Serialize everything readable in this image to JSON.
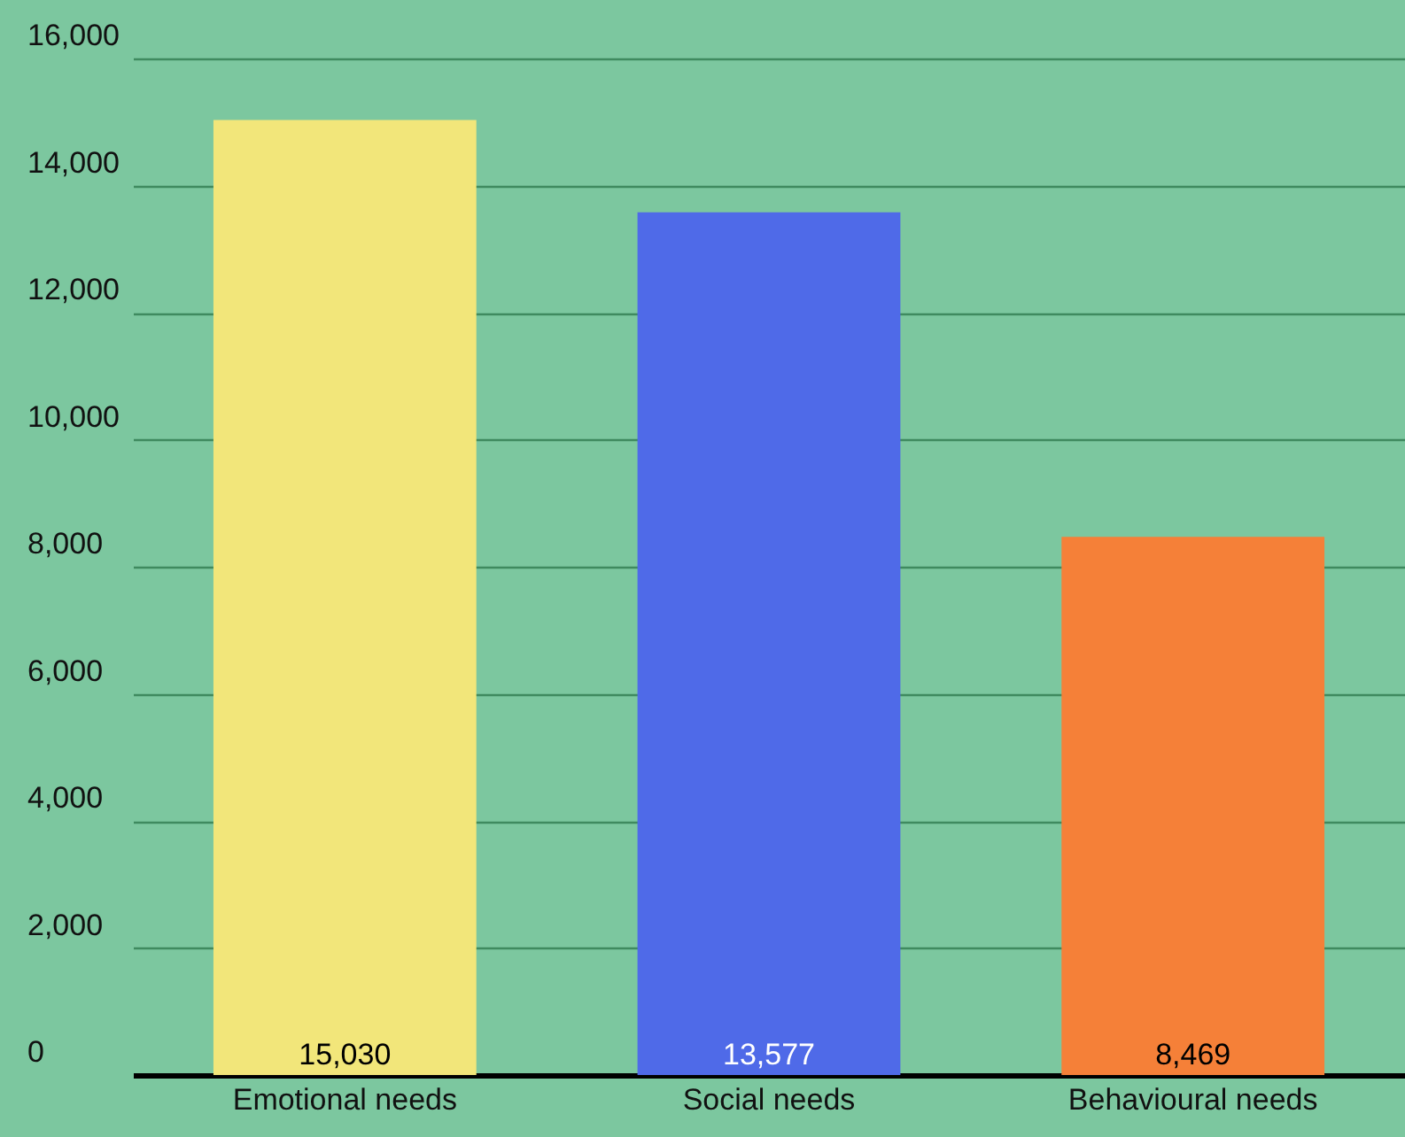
{
  "chart_data": {
    "type": "bar",
    "categories": [
      "Emotional needs",
      "Social needs",
      "Behavioural needs"
    ],
    "values": [
      15030,
      13577,
      8469
    ],
    "value_labels": [
      "15,030",
      "13,577",
      "8,469"
    ],
    "colors": [
      "#f2e67a",
      "#4f6ae8",
      "#f58038"
    ],
    "ylim": [
      0,
      16000
    ],
    "yticks": [
      0,
      {
        "value": 2000,
        "label": "2,000"
      },
      {
        "value": 4000,
        "label": "4,000"
      },
      {
        "value": 6000,
        "label": "6,000"
      },
      {
        "value": 8000,
        "label": "8,000"
      },
      {
        "value": 10000,
        "label": "10,000"
      },
      {
        "value": 12000,
        "label": "12,000"
      },
      {
        "value": 14000,
        "label": "14,000"
      },
      {
        "value": 16000,
        "label": "16,000"
      }
    ],
    "grid": "y"
  }
}
